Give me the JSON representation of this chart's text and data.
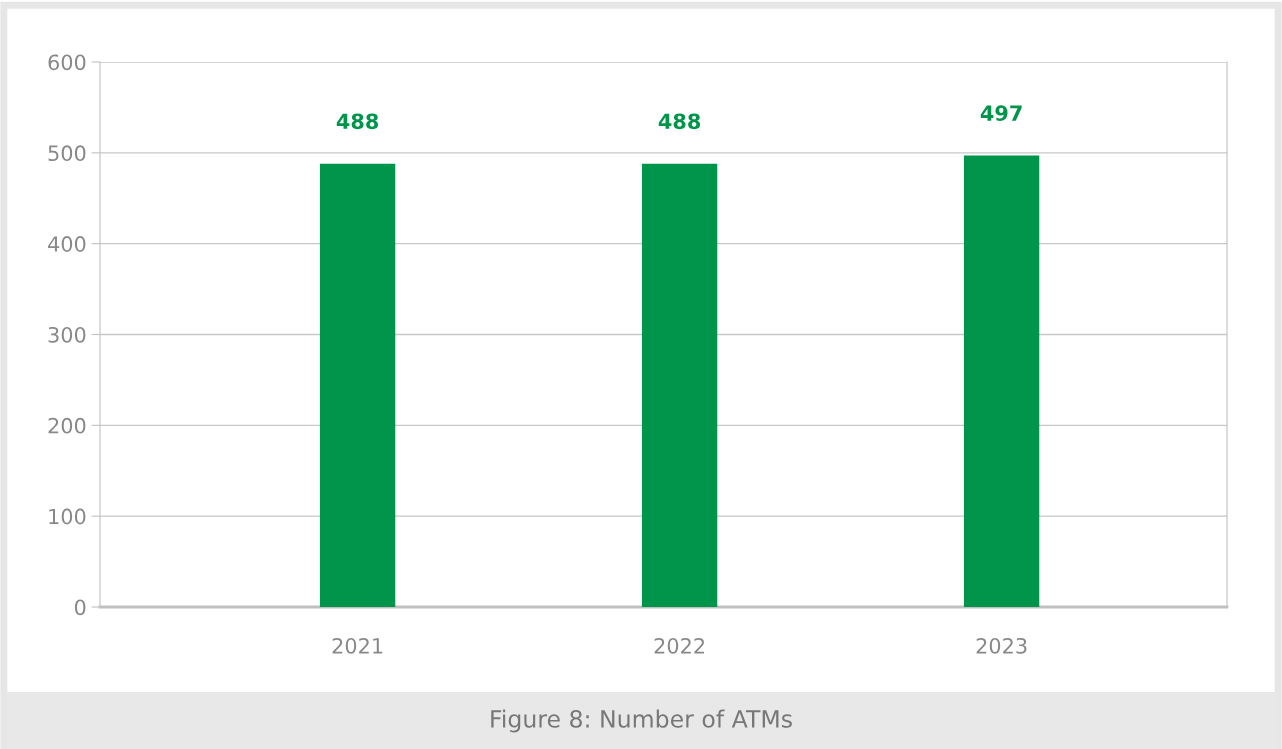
{
  "chart_data": {
    "type": "bar",
    "title": "Figure 8: Number of ATMs",
    "categories": [
      "2021",
      "2022",
      "2023"
    ],
    "values": [
      488,
      488,
      497
    ],
    "color": "#00954a",
    "ylim": [
      0,
      600
    ],
    "yticks": [
      0,
      100,
      200,
      300,
      400,
      500,
      600
    ],
    "grid": "y",
    "data_labels": true
  }
}
